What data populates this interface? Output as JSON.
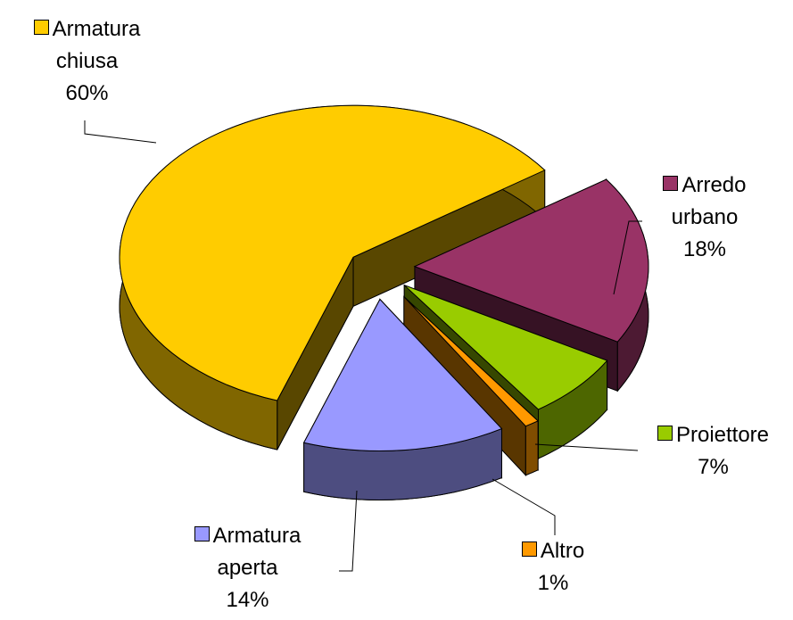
{
  "chart_data": {
    "type": "pie",
    "categories": [
      "Armatura chiusa",
      "Arredo urbano",
      "Proiettore",
      "Altro",
      "Armatura aperta"
    ],
    "values": [
      60,
      18,
      7,
      1,
      14
    ],
    "value_labels": [
      "60%",
      "18%",
      "7%",
      "1%",
      "14%"
    ],
    "colors": [
      "#ffcc00",
      "#993366",
      "#99cc00",
      "#ff9900",
      "#9999ff"
    ]
  }
}
